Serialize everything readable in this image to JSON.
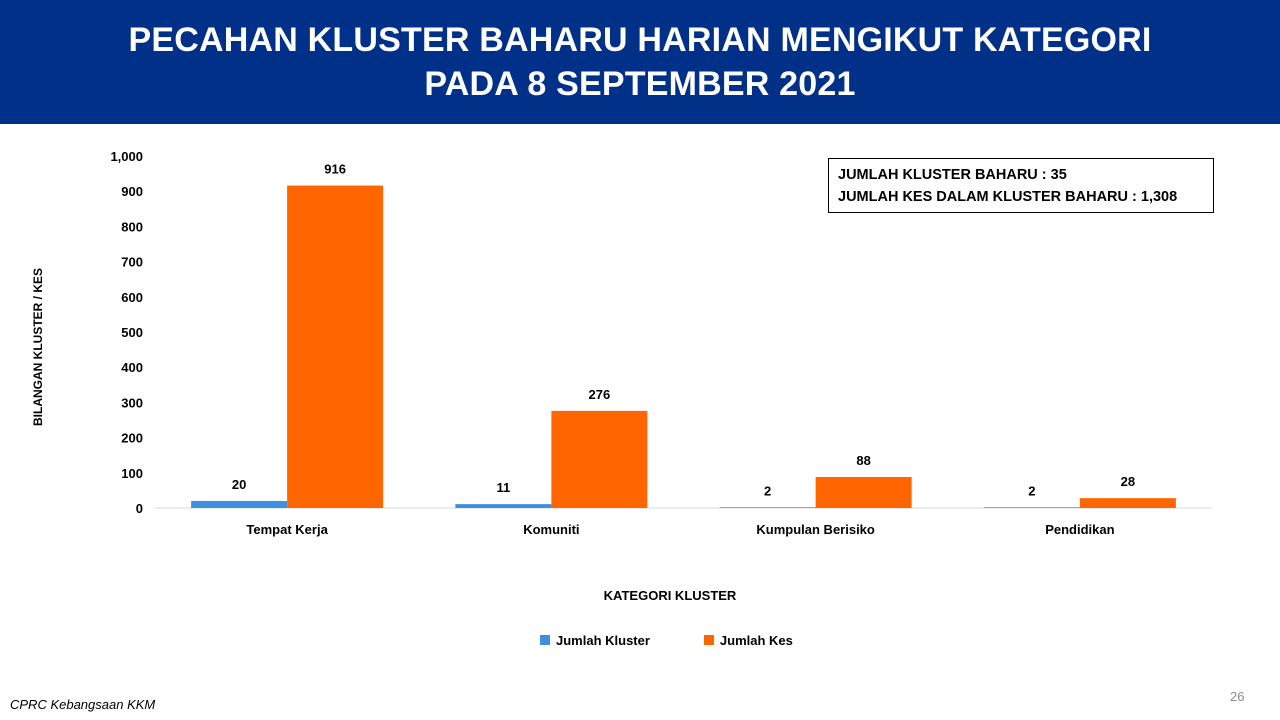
{
  "title": {
    "line1": "PECAHAN KLUSTER BAHARU HARIAN MENGIKUT KATEGORI",
    "line2": "PADA 8 SEPTEMBER 2021"
  },
  "infobox": {
    "line1": "JUMLAH KLUSTER BAHARU : 35",
    "line2": "JUMLAH KES DALAM KLUSTER BAHARU : 1,308"
  },
  "footer": {
    "source": "CPRC Kebangsaan KKM",
    "page": "26"
  },
  "chart_data": {
    "type": "bar",
    "categories": [
      "Tempat Kerja",
      "Komuniti",
      "Kumpulan Berisiko",
      "Pendidikan"
    ],
    "series": [
      {
        "name": "Jumlah Kluster",
        "values": [
          20,
          11,
          2,
          2
        ],
        "color": "#3d8fe0"
      },
      {
        "name": "Jumlah Kes",
        "values": [
          916,
          276,
          88,
          28
        ],
        "color": "#ff6600"
      }
    ],
    "xlabel": "KATEGORI KLUSTER",
    "ylabel": "BILANGAN KLUSTER / KES",
    "ylim": [
      0,
      1000
    ],
    "yticks": [
      "0",
      "100",
      "200",
      "300",
      "400",
      "500",
      "600",
      "700",
      "800",
      "900",
      "1,000"
    ],
    "grid": false,
    "legend_position": "bottom"
  }
}
